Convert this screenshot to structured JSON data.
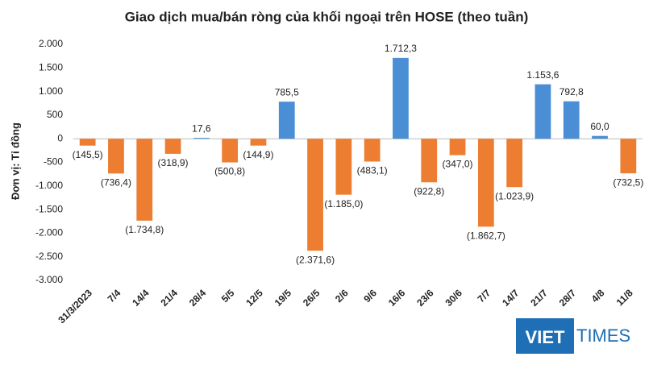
{
  "chart_data": {
    "type": "bar",
    "title": "Giao dịch mua/bán ròng của khối ngoại trên HOSE (theo tuần)",
    "y_label": "Đơn vị: Tỉ đồng",
    "categories": [
      "31/3/2023",
      "7/4",
      "14/4",
      "21/4",
      "28/4",
      "5/5",
      "12/5",
      "19/5",
      "26/5",
      "2/6",
      "9/6",
      "16/6",
      "23/6",
      "30/6",
      "7/7",
      "14/7",
      "21/7",
      "28/7",
      "4/8",
      "11/8"
    ],
    "values": [
      -145.5,
      -736.4,
      -1734.8,
      -318.9,
      17.6,
      -500.8,
      -144.9,
      785.5,
      -2371.6,
      -1185.0,
      -483.1,
      1712.3,
      -922.8,
      -347.0,
      -1862.7,
      -1023.9,
      1153.6,
      792.8,
      60.0,
      -732.5
    ],
    "value_labels": [
      "(145,5)",
      "(736,4)",
      "(1.734,8)",
      "(318,9)",
      "17,6",
      "(500,8)",
      "(144,9)",
      "785,5",
      "(2.371,6)",
      "(1.185,0)",
      "(483,1)",
      "1.712,3",
      "(922,8)",
      "(347,0)",
      "(1.862,7)",
      "(1.023,9)",
      "1.153,6",
      "792,8",
      "60,0",
      "(732,5)"
    ],
    "positive_color": "#4a8fd6",
    "negative_color": "#ed7d31",
    "ylim": [
      -3000,
      2000
    ],
    "yticks": [
      {
        "value": -3000,
        "label": "-3.000"
      },
      {
        "value": -2500,
        "label": "-2.500"
      },
      {
        "value": -2000,
        "label": "-2.000"
      },
      {
        "value": -1500,
        "label": "-1.500"
      },
      {
        "value": -1000,
        "label": "-1.000"
      },
      {
        "value": -500,
        "label": "-500"
      },
      0,
      500,
      {
        "value": 1000,
        "label": "1.000"
      },
      {
        "value": 1500,
        "label": "1.500"
      },
      {
        "value": 2000,
        "label": "2.000"
      }
    ],
    "grid": false,
    "logo": {
      "left": "VIET",
      "right": "TIMES"
    }
  }
}
